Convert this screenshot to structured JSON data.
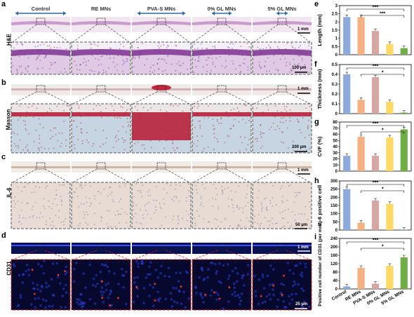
{
  "columns": [
    "Control",
    "RE MNs",
    "PVA-S MNs",
    "0% GL MNs",
    "5% GL MNs"
  ],
  "panel_letters": [
    "a",
    "b",
    "c",
    "d",
    "e",
    "f",
    "g",
    "h",
    "i"
  ],
  "row_labels": {
    "he": "H&E",
    "masson": "Masson",
    "il6": "IL-6",
    "cd31": "CD31"
  },
  "scale_bars": {
    "mm": "1 mm",
    "he": "100 µm",
    "masson": "200 µm",
    "il6": "50 µm",
    "cd31": "25 µm"
  },
  "colors": {
    "control": "#8ea9db",
    "re": "#f4b183",
    "pva": "#d5a6a2",
    "gl0": "#ffd966",
    "gl5": "#70ad47"
  },
  "chart_data": [
    {
      "type": "bar",
      "panel": "e",
      "categories": [
        "Control",
        "RE MNs",
        "PVA-S MNs",
        "0% GL MNs",
        "5% GL MNs"
      ],
      "values": [
        2.3,
        2.3,
        1.45,
        0.65,
        0.4
      ],
      "ylabel": "Length (mm)",
      "ylim": [
        0,
        3.0
      ],
      "yticks": [
        0,
        0.5,
        1.0,
        1.5,
        2.0,
        2.5,
        3.0
      ],
      "significance": [
        {
          "from": 0,
          "to": 4,
          "label": "***"
        },
        {
          "from": 1,
          "to": 4,
          "label": "***"
        }
      ]
    },
    {
      "type": "bar",
      "panel": "f",
      "categories": [
        "Control",
        "RE MNs",
        "PVA-S MNs",
        "0% GL MNs",
        "5% GL MNs"
      ],
      "values": [
        0.4,
        0.14,
        0.37,
        0.12,
        0.01
      ],
      "ylabel": "Thickness (mm)",
      "ylim": [
        0,
        0.5
      ],
      "yticks": [
        0,
        0.1,
        0.2,
        0.3,
        0.4,
        0.5
      ],
      "significance": [
        {
          "from": 0,
          "to": 4,
          "label": "***"
        },
        {
          "from": 1,
          "to": 4,
          "label": "*"
        }
      ]
    },
    {
      "type": "bar",
      "panel": "g",
      "categories": [
        "Control",
        "RE MNs",
        "PVA-S MNs",
        "0% GL MNs",
        "5% GL MNs"
      ],
      "values": [
        25,
        56,
        25,
        55,
        68
      ],
      "ylabel": "CVF (%)",
      "ylim": [
        0,
        80
      ],
      "yticks": [
        0,
        10,
        20,
        30,
        40,
        50,
        60,
        70,
        80
      ],
      "significance": [
        {
          "from": 0,
          "to": 4,
          "label": "***"
        },
        {
          "from": 1,
          "to": 4,
          "label": "*"
        }
      ]
    },
    {
      "type": "bar",
      "panel": "h",
      "categories": [
        "Control",
        "RE MNs",
        "PVA-S MNs",
        "0% GL MNs",
        "5% GL MNs"
      ],
      "values": [
        250,
        45,
        180,
        160,
        2
      ],
      "ylabel": "IL-6 positive cell",
      "ylim": [
        0,
        300
      ],
      "yticks": [
        0,
        50,
        100,
        150,
        200,
        250,
        300
      ],
      "significance": [
        {
          "from": 0,
          "to": 4,
          "label": "***"
        },
        {
          "from": 1,
          "to": 4,
          "label": "*"
        }
      ]
    },
    {
      "type": "bar",
      "panel": "i",
      "categories": [
        "Control",
        "RE MNs",
        "PVA-S MNs",
        "0% GL MNs",
        "5% GL MNs"
      ],
      "values": [
        12,
        100,
        25,
        110,
        150
      ],
      "ylabel": "Positive cell number of CD31 (per mm²)",
      "ylim": [
        0,
        240
      ],
      "yticks": [
        0,
        40,
        80,
        120,
        160,
        200,
        240
      ],
      "significance": [
        {
          "from": 0,
          "to": 4,
          "label": "***"
        },
        {
          "from": 1,
          "to": 4,
          "label": "*"
        }
      ]
    }
  ]
}
